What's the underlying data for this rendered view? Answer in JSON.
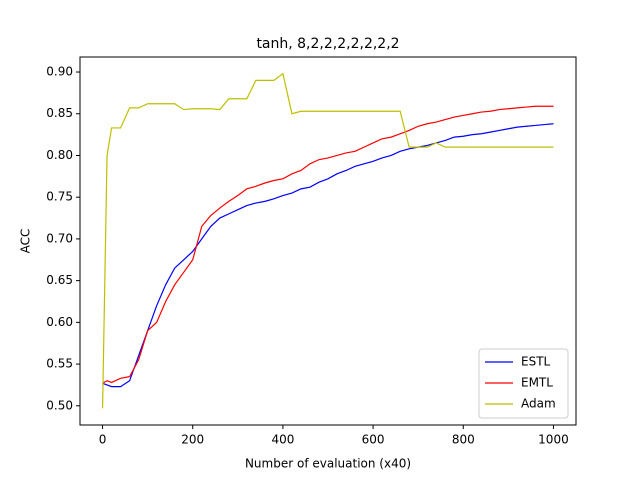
{
  "chart_data": {
    "type": "line",
    "title": "tanh, 8,2,2,2,2,2,2,2",
    "xlabel": "Number of evaluation (x40)",
    "ylabel": "ACC",
    "x": [
      0,
      10,
      20,
      40,
      60,
      80,
      100,
      120,
      140,
      160,
      180,
      200,
      220,
      240,
      260,
      280,
      300,
      320,
      340,
      360,
      380,
      400,
      420,
      440,
      460,
      480,
      500,
      520,
      540,
      560,
      580,
      600,
      620,
      640,
      660,
      680,
      700,
      720,
      740,
      760,
      780,
      800,
      820,
      840,
      860,
      880,
      900,
      920,
      940,
      960,
      980,
      1000
    ],
    "series": [
      {
        "name": "ESTL",
        "color": "#0000ff",
        "values": [
          0.527,
          0.525,
          0.523,
          0.523,
          0.53,
          0.56,
          0.59,
          0.62,
          0.645,
          0.665,
          0.675,
          0.685,
          0.7,
          0.715,
          0.725,
          0.73,
          0.735,
          0.74,
          0.743,
          0.745,
          0.748,
          0.752,
          0.755,
          0.76,
          0.762,
          0.768,
          0.772,
          0.778,
          0.782,
          0.787,
          0.79,
          0.793,
          0.797,
          0.8,
          0.805,
          0.808,
          0.81,
          0.812,
          0.815,
          0.818,
          0.822,
          0.823,
          0.825,
          0.826,
          0.828,
          0.83,
          0.832,
          0.834,
          0.835,
          0.836,
          0.837,
          0.838
        ]
      },
      {
        "name": "EMTL",
        "color": "#ff0000",
        "values": [
          0.527,
          0.53,
          0.528,
          0.533,
          0.535,
          0.555,
          0.59,
          0.6,
          0.625,
          0.645,
          0.66,
          0.675,
          0.715,
          0.728,
          0.737,
          0.745,
          0.752,
          0.76,
          0.763,
          0.767,
          0.77,
          0.772,
          0.778,
          0.782,
          0.79,
          0.795,
          0.797,
          0.8,
          0.803,
          0.805,
          0.81,
          0.815,
          0.82,
          0.822,
          0.826,
          0.83,
          0.835,
          0.838,
          0.84,
          0.843,
          0.846,
          0.848,
          0.85,
          0.852,
          0.853,
          0.855,
          0.856,
          0.857,
          0.858,
          0.859,
          0.859,
          0.859
        ]
      },
      {
        "name": "Adam",
        "color": "#bfbf00",
        "values": [
          0.497,
          0.8,
          0.833,
          0.833,
          0.857,
          0.857,
          0.862,
          0.862,
          0.862,
          0.862,
          0.855,
          0.856,
          0.856,
          0.856,
          0.855,
          0.868,
          0.868,
          0.868,
          0.89,
          0.89,
          0.89,
          0.898,
          0.85,
          0.853,
          0.853,
          0.853,
          0.853,
          0.853,
          0.853,
          0.853,
          0.853,
          0.853,
          0.853,
          0.853,
          0.853,
          0.81,
          0.81,
          0.81,
          0.815,
          0.81,
          0.81,
          0.81,
          0.81,
          0.81,
          0.81,
          0.81,
          0.81,
          0.81,
          0.81,
          0.81,
          0.81,
          0.81
        ]
      }
    ],
    "xlim": [
      -50,
      1050
    ],
    "ylim": [
      0.477,
      0.918
    ],
    "xticks": [
      0,
      200,
      400,
      600,
      800,
      1000
    ],
    "yticks": [
      {
        "value": 0.5,
        "label": "0.50"
      },
      {
        "value": 0.55,
        "label": "0.55"
      },
      {
        "value": 0.6,
        "label": "0.60"
      },
      {
        "value": 0.65,
        "label": "0.65"
      },
      {
        "value": 0.7,
        "label": "0.70"
      },
      {
        "value": 0.75,
        "label": "0.75"
      },
      {
        "value": 0.8,
        "label": "0.80"
      },
      {
        "value": 0.85,
        "label": "0.85"
      },
      {
        "value": 0.9,
        "label": "0.90"
      }
    ],
    "legend": "lower right",
    "grid": false
  }
}
